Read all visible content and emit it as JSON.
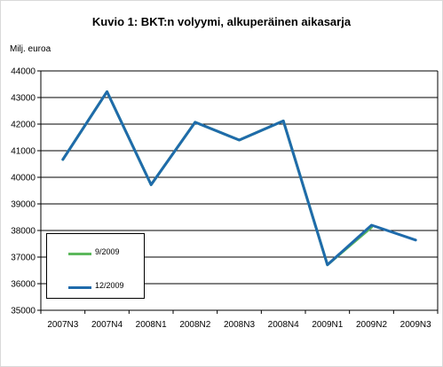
{
  "chart_data": {
    "type": "line",
    "title": "Kuvio 1: BKT:n volyymi, alkuperäinen aikasarja",
    "ylabel": "Milj. euroa",
    "xlabel": "",
    "categories": [
      "2007N3",
      "2007N4",
      "2008N1",
      "2008N2",
      "2008N3",
      "2008N4",
      "2009N1",
      "2009N2",
      "2009N3"
    ],
    "ylim": [
      35000,
      44000
    ],
    "yticks": [
      "35000",
      "36000",
      "37000",
      "38000",
      "39000",
      "40000",
      "41000",
      "42000",
      "43000",
      "44000"
    ],
    "grid": true,
    "legend": "bottom-left",
    "series": [
      {
        "name": "9/2009",
        "color": "#5cb85c",
        "values": [
          40670,
          43220,
          39720,
          42070,
          41400,
          42120,
          36710,
          38120,
          null
        ]
      },
      {
        "name": "12/2009",
        "color": "#1f6bab",
        "values": [
          40670,
          43220,
          39720,
          42070,
          41400,
          42120,
          36710,
          38200,
          37640
        ]
      }
    ]
  }
}
